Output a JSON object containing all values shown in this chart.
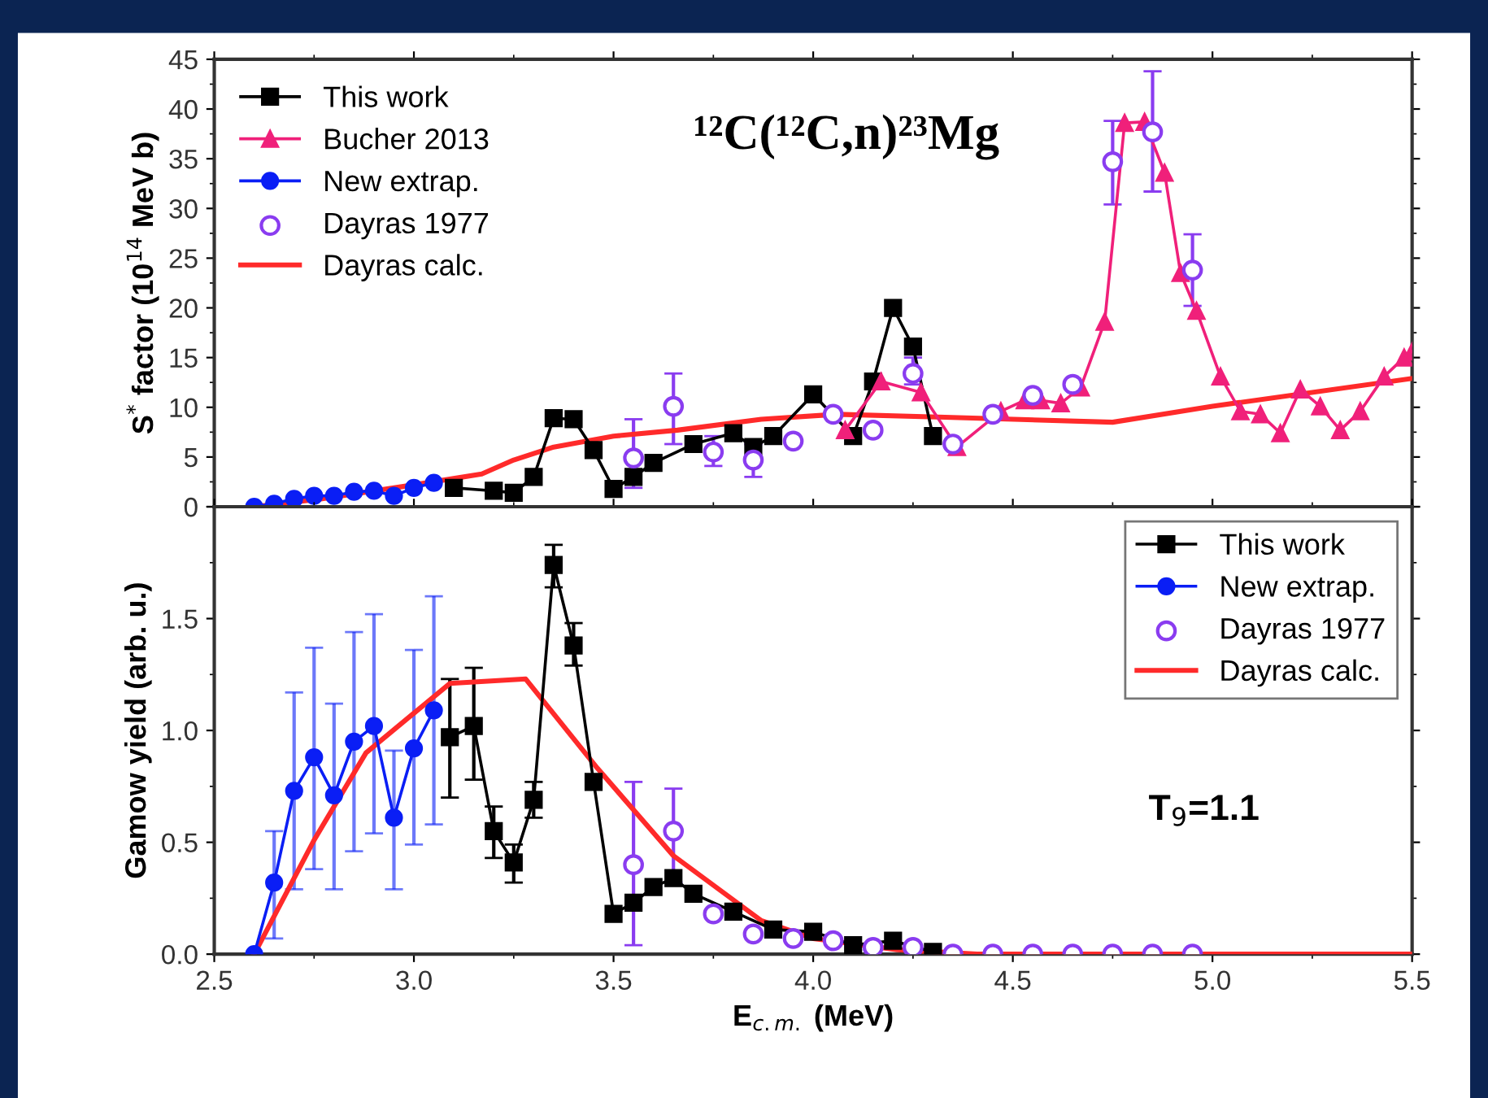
{
  "chart_data": [
    {
      "type": "line",
      "ylabel": "S$^{*}$ factor (10$^{14}$ MeV b)",
      "annotations": [
        "¹²C(¹²C,n)²³Mg"
      ],
      "xlim": [
        2.5,
        5.5
      ],
      "xticks": [
        2.5,
        3,
        3.5,
        4,
        4.5,
        5,
        5.5
      ],
      "ylim": [
        0,
        45
      ],
      "yticks": [
        0,
        5,
        10,
        15,
        20,
        25,
        30,
        35,
        40,
        45
      ],
      "tick_labels": "y",
      "legend": "top left",
      "grid": false,
      "series": [
        {
          "name": "This work",
          "type": "line",
          "marker": "square",
          "color": "#000000",
          "x": [
            3.1,
            3.2,
            3.25,
            3.3,
            3.35,
            3.4,
            3.45,
            3.5,
            3.55,
            3.6,
            3.7,
            3.8,
            3.85,
            3.9,
            4.0,
            4.1,
            4.15,
            4.2,
            4.25,
            4.3
          ],
          "values": [
            1.9,
            1.6,
            1.4,
            3.0,
            8.9,
            8.8,
            5.7,
            1.8,
            3.0,
            4.4,
            6.3,
            7.4,
            6.0,
            7.1,
            11.3,
            7.1,
            12.6,
            20.0,
            16.1,
            7.1
          ]
        },
        {
          "name": "Bucher 2013",
          "type": "line",
          "marker": "triangle",
          "color": "#f0207a",
          "x": [
            4.08,
            4.17,
            4.27,
            4.36,
            4.47,
            4.53,
            4.57,
            4.62,
            4.67,
            4.73,
            4.78,
            4.83,
            4.88,
            4.92,
            4.96,
            5.02,
            5.07,
            5.12,
            5.17,
            5.22,
            5.27,
            5.32,
            5.37,
            5.43,
            5.48,
            5.5
          ],
          "values": [
            7.7,
            12.6,
            11.5,
            6.0,
            9.6,
            10.7,
            10.7,
            10.4,
            12.0,
            18.6,
            38.6,
            38.7,
            33.6,
            23.5,
            19.7,
            13.1,
            9.6,
            9.3,
            7.4,
            11.8,
            10.1,
            7.7,
            9.6,
            13.1,
            15.0,
            15.6
          ]
        },
        {
          "name": "New extrap.",
          "type": "line",
          "marker": "circle",
          "color": "#0a1ef5",
          "x": [
            2.6,
            2.65,
            2.7,
            2.75,
            2.8,
            2.85,
            2.9,
            2.95,
            3.0,
            3.05
          ],
          "values": [
            0,
            0.3,
            0.8,
            1.1,
            1.1,
            1.5,
            1.6,
            1.1,
            1.9,
            2.4
          ]
        },
        {
          "name": "Dayras 1977",
          "type": "scatter",
          "marker": "circle",
          "color": "#8a3cf0",
          "x": [
            3.55,
            3.65,
            3.75,
            3.85,
            3.95,
            4.05,
            4.15,
            4.25,
            4.35,
            4.45,
            4.55,
            4.65,
            4.75,
            4.85,
            4.95
          ],
          "values": [
            4.9,
            10.1,
            5.5,
            4.7,
            6.6,
            9.3,
            7.7,
            13.4,
            6.3,
            9.3,
            11.2,
            12.3,
            34.7,
            37.7,
            23.8
          ],
          "errors": [
            [
              1.9,
              8.8
            ],
            [
              6.3,
              13.4
            ],
            [
              4.1,
              7.1
            ],
            [
              3.0,
              6.3
            ],
            null,
            null,
            null,
            [
              12.3,
              15.0
            ],
            null,
            null,
            null,
            null,
            [
              30.4,
              38.8
            ],
            [
              31.7,
              43.8
            ],
            [
              20.2,
              27.4
            ]
          ]
        },
        {
          "name": "Dayras calc.",
          "type": "line",
          "marker": "none",
          "color": "#ff2a2a",
          "x": [
            2.6,
            2.77,
            3.0,
            3.17,
            3.25,
            3.35,
            3.5,
            3.66,
            3.87,
            4.06,
            4.33,
            4.75,
            5.0,
            5.5
          ],
          "values": [
            0,
            0.8,
            2.2,
            3.3,
            4.7,
            6.0,
            7.1,
            7.7,
            8.8,
            9.3,
            9.0,
            8.5,
            10.1,
            12.9
          ]
        }
      ]
    },
    {
      "type": "line",
      "xlabel": "E$_{c.m.}$ (MeV)",
      "ylabel": "Gamow yield (arb. u.)",
      "annotations": [
        "T$_{9}$=1.1"
      ],
      "xlim": [
        2.5,
        5.5
      ],
      "xticks": [
        2.5,
        {
          "value": 3,
          "label": "3.0"
        },
        3.5,
        {
          "value": 4,
          "label": "4.0"
        },
        4.5,
        {
          "value": 5,
          "label": "5.0"
        },
        5.5
      ],
      "ylim": [
        0,
        2.0
      ],
      "yticks": [
        {
          "value": 0,
          "label": "0.0"
        },
        0.5,
        {
          "value": 1,
          "label": "1.0"
        },
        1.5,
        {
          "value": 2.0,
          "label": null
        }
      ],
      "legend": "top right",
      "grid": false,
      "series": [
        {
          "name": "This work",
          "type": "line",
          "marker": "square",
          "color": "#000000",
          "x": [
            3.09,
            3.15,
            3.2,
            3.25,
            3.3,
            3.35,
            3.4,
            3.45,
            3.5,
            3.55,
            3.6,
            3.65,
            3.7,
            3.8,
            3.9,
            4.0,
            4.1,
            4.2,
            4.3
          ],
          "values": [
            0.97,
            1.02,
            0.55,
            0.41,
            0.69,
            1.74,
            1.38,
            0.77,
            0.18,
            0.23,
            0.3,
            0.34,
            0.27,
            0.19,
            0.11,
            0.1,
            0.04,
            0.06,
            0.01
          ],
          "errors": [
            [
              0.7,
              1.23
            ],
            [
              0.78,
              1.28
            ],
            [
              0.43,
              0.66
            ],
            [
              0.32,
              0.49
            ],
            [
              0.61,
              0.77
            ],
            [
              1.64,
              1.83
            ],
            [
              1.29,
              1.48
            ],
            null,
            null,
            null,
            null,
            null,
            null,
            null,
            null,
            null,
            null,
            null,
            null
          ]
        },
        {
          "name": "New extrap.",
          "type": "line",
          "marker": "circle",
          "color": "#0a1ef5",
          "x": [
            2.6,
            2.65,
            2.7,
            2.75,
            2.8,
            2.85,
            2.9,
            2.95,
            3.0,
            3.05
          ],
          "values": [
            0.0,
            0.32,
            0.73,
            0.88,
            0.71,
            0.95,
            1.02,
            0.61,
            0.92,
            1.09
          ],
          "errors": [
            null,
            [
              0.07,
              0.55
            ],
            [
              0.29,
              1.17
            ],
            [
              0.38,
              1.37
            ],
            [
              0.29,
              1.12
            ],
            [
              0.46,
              1.44
            ],
            [
              0.54,
              1.52
            ],
            [
              0.29,
              0.91
            ],
            [
              0.49,
              1.36
            ],
            [
              0.58,
              1.6
            ]
          ]
        },
        {
          "name": "Dayras 1977",
          "type": "scatter",
          "marker": "circle",
          "color": "#8a3cf0",
          "x": [
            3.55,
            3.65,
            3.75,
            3.85,
            3.95,
            4.05,
            4.15,
            4.25,
            4.35,
            4.45,
            4.55,
            4.65,
            4.75,
            4.85,
            4.95
          ],
          "values": [
            0.4,
            0.55,
            0.18,
            0.09,
            0.07,
            0.06,
            0.03,
            0.03,
            0.0,
            0.0,
            0.0,
            0.0,
            0.0,
            0.0,
            0.0
          ],
          "errors": [
            [
              0.04,
              0.77
            ],
            [
              0.32,
              0.74
            ],
            null,
            null,
            null,
            null,
            null,
            null,
            null,
            null,
            null,
            null,
            null,
            null,
            null
          ]
        },
        {
          "name": "Dayras calc.",
          "type": "line",
          "marker": "none",
          "color": "#ff2a2a",
          "x": [
            2.6,
            2.75,
            2.88,
            3.09,
            3.28,
            3.46,
            3.65,
            3.87,
            4.0,
            4.21,
            4.41,
            5.5
          ],
          "values": [
            0,
            0.51,
            0.9,
            1.21,
            1.23,
            0.83,
            0.44,
            0.15,
            0.07,
            0.02,
            0,
            0
          ]
        }
      ]
    }
  ]
}
